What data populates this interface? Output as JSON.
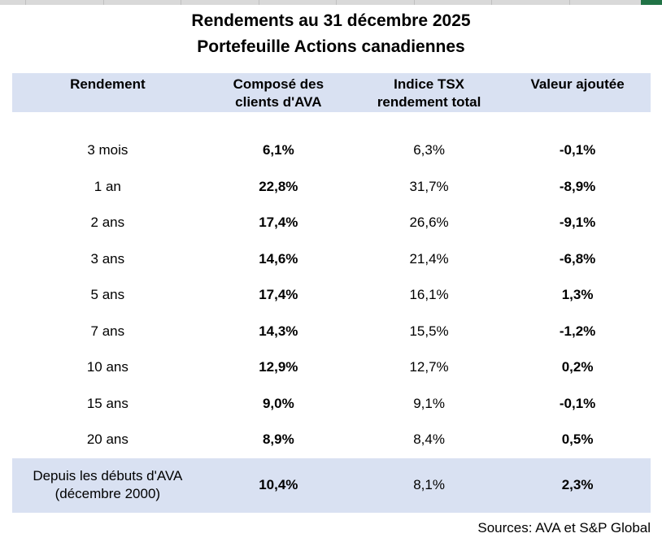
{
  "title": {
    "line1": "Rendements au 31 décembre 2025",
    "line2": "Portefeuille Actions canadiennes"
  },
  "source_note": "Sources: AVA et S&P Global",
  "colors": {
    "band_blue": "#d9e1f2",
    "text": "#000000",
    "background": "#ffffff",
    "spreadsheet_strip_gray": "#d9d9d9",
    "spreadsheet_gridline": "#c0c0c0",
    "excel_green_cell": "#217346"
  },
  "table": {
    "headers": [
      {
        "label": "Rendement"
      },
      {
        "label": "Composé des\nclients d'AVA"
      },
      {
        "label": "Indice TSX\nrendement total"
      },
      {
        "label": "Valeur ajoutée"
      }
    ]
  },
  "chart_data": {
    "type": "table",
    "title": "Rendements au 31 décembre 2025 — Portefeuille Actions canadiennes",
    "columns": [
      "Rendement",
      "Composé des clients d'AVA",
      "Indice TSX rendement total",
      "Valeur ajoutée"
    ],
    "rows": [
      {
        "label": "3 mois",
        "ava": "6,1%",
        "tsx": "6,3%",
        "valeur_ajoutee": "-0,1%",
        "highlight": false
      },
      {
        "label": "1 an",
        "ava": "22,8%",
        "tsx": "31,7%",
        "valeur_ajoutee": "-8,9%",
        "highlight": false
      },
      {
        "label": "2 ans",
        "ava": "17,4%",
        "tsx": "26,6%",
        "valeur_ajoutee": "-9,1%",
        "highlight": false
      },
      {
        "label": "3 ans",
        "ava": "14,6%",
        "tsx": "21,4%",
        "valeur_ajoutee": "-6,8%",
        "highlight": false
      },
      {
        "label": "5 ans",
        "ava": "17,4%",
        "tsx": "16,1%",
        "valeur_ajoutee": "1,3%",
        "highlight": false
      },
      {
        "label": "7 ans",
        "ava": "14,3%",
        "tsx": "15,5%",
        "valeur_ajoutee": "-1,2%",
        "highlight": false
      },
      {
        "label": "10 ans",
        "ava": "12,9%",
        "tsx": "12,7%",
        "valeur_ajoutee": "0,2%",
        "highlight": false
      },
      {
        "label": "15 ans",
        "ava": "9,0%",
        "tsx": "9,1%",
        "valeur_ajoutee": "-0,1%",
        "highlight": false
      },
      {
        "label": "20 ans",
        "ava": "8,9%",
        "tsx": "8,4%",
        "valeur_ajoutee": "0,5%",
        "highlight": false
      },
      {
        "label": "Depuis les débuts d'AVA\n(décembre 2000)",
        "ava": "10,4%",
        "tsx": "8,1%",
        "valeur_ajoutee": "2,3%",
        "highlight": true
      }
    ]
  }
}
